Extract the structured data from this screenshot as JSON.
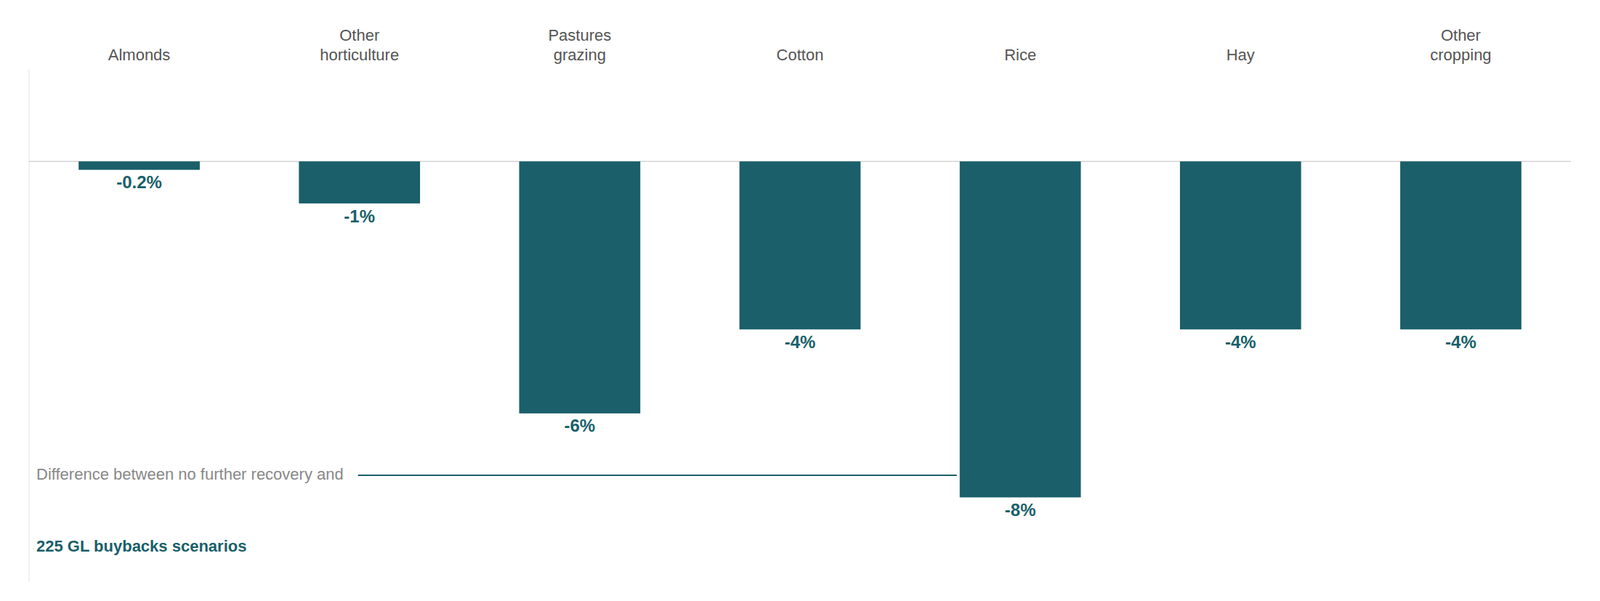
{
  "chart_data": {
    "type": "bar",
    "categories": [
      "Almonds",
      "Other\nhorticulture",
      "Pastures\ngrazing",
      "Cotton",
      "Rice",
      "Hay",
      "Other\ncropping"
    ],
    "values": [
      -0.2,
      -1,
      -6,
      -4,
      -8,
      -4,
      -4
    ],
    "value_labels": [
      "-0.2%",
      "-1%",
      "-6%",
      "-4%",
      "-8%",
      "-4%",
      "-4%"
    ],
    "data_labels": true,
    "color": "#1a5f6a",
    "ylim": [
      -10.0,
      2.2
    ],
    "tick_labels": "x",
    "annotations": [
      "Difference between no further recovery and",
      "225 GL buybacks scenarios"
    ]
  }
}
